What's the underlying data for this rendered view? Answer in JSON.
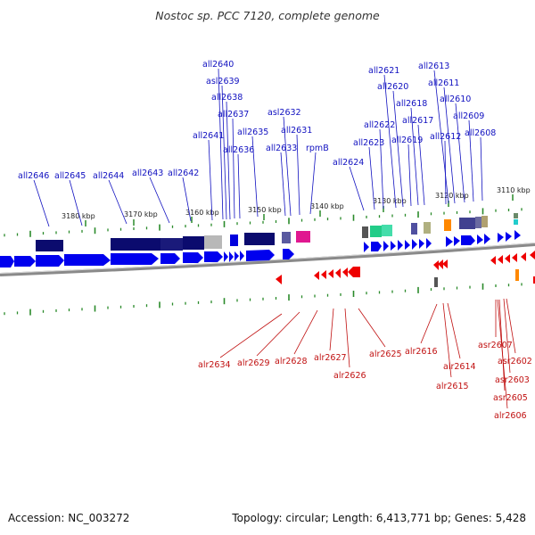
{
  "title": "Nostoc sp. PCC 7120, complete genome",
  "footer": {
    "accession": "Accession: NC_003272",
    "summary": "Topology: circular; Length: 6,413,771 bp; Genes: 5,428"
  },
  "colors": {
    "forward_gene": "#0000ee",
    "reverse_gene": "#ee0000",
    "forward_label": "#1010c0",
    "reverse_label": "#c01010",
    "tick": "#2a8a2a",
    "backbone": "#888888"
  },
  "scale_labels": [
    "3180 kbp",
    "3170 kbp",
    "3160 kbp",
    "3150 kbp",
    "3140 kbp",
    "3130 kbp",
    "3120 kbp",
    "3110 kbp"
  ],
  "forward_genes": [
    "all2646",
    "all2645",
    "all2644",
    "all2643",
    "all2642",
    "all2641",
    "all2640",
    "asl2639",
    "all2638",
    "all2637",
    "all2636",
    "all2635",
    "all2633",
    "asl2632",
    "all2631",
    "rpmB",
    "all2624",
    "all2623",
    "all2622",
    "all2621",
    "all2620",
    "all2619",
    "all2618",
    "all2617",
    "all2613",
    "all2612",
    "all2611",
    "all2610",
    "all2609",
    "all2608"
  ],
  "reverse_genes": [
    "alr2634",
    "alr2629",
    "alr2628",
    "alr2627",
    "alr2626",
    "alr2625",
    "alr2616",
    "alr2615",
    "alr2614",
    "asr2607",
    "asr2602",
    "asr2603",
    "asr2605",
    "alr2606"
  ]
}
